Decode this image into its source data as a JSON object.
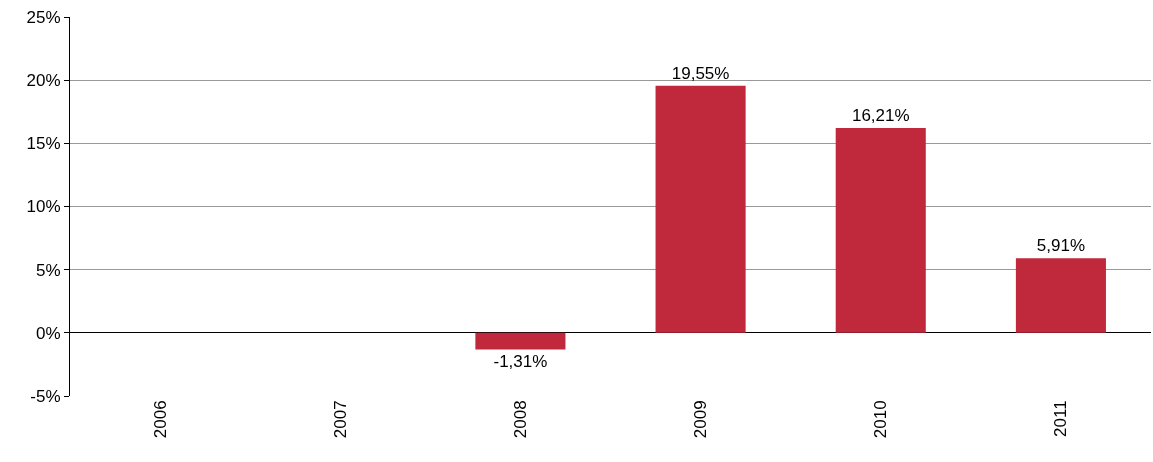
{
  "chart_data": {
    "type": "bar",
    "categories": [
      "2006",
      "2007",
      "2008",
      "2009",
      "2010",
      "2011"
    ],
    "values": [
      null,
      null,
      -1.31,
      19.55,
      16.21,
      5.91
    ],
    "value_labels": [
      null,
      null,
      "-1,31%",
      "19,55%",
      "16,21%",
      "5,91%"
    ],
    "color": "#c0283c",
    "ylim": [
      -5,
      25
    ],
    "yticks": [
      {
        "value": -5,
        "label": "-5%"
      },
      {
        "value": 0,
        "label": "0%"
      },
      {
        "value": 5,
        "label": "5%"
      },
      {
        "value": 10,
        "label": "10%"
      },
      {
        "value": 15,
        "label": "15%"
      },
      {
        "value": 20,
        "label": "20%"
      },
      {
        "value": 25,
        "label": "25%"
      }
    ],
    "grid": "y",
    "legend": false
  }
}
